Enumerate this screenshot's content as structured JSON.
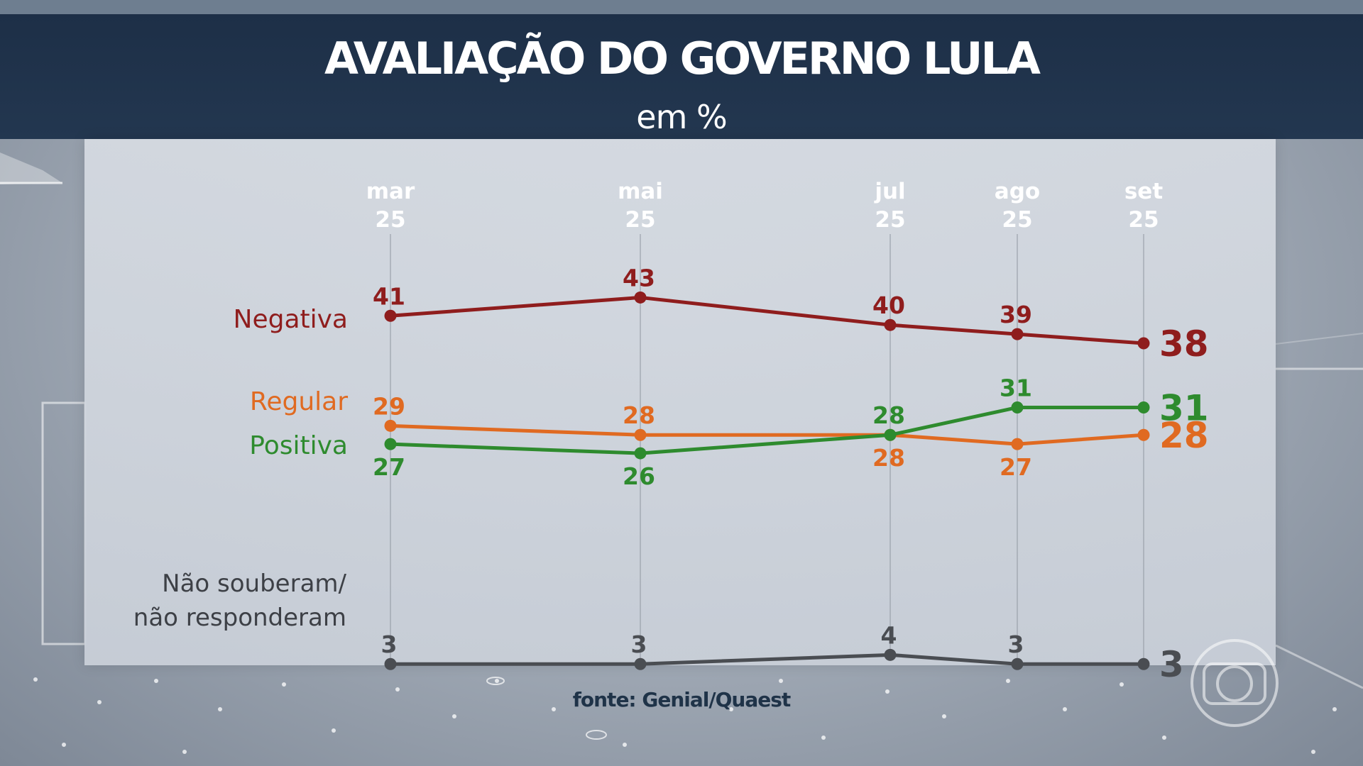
{
  "header": {
    "title": "AVALIAÇÃO DO GOVERNO LULA",
    "subtitle": "em %"
  },
  "source": "fonte: Genial/Quaest",
  "chart_data": {
    "type": "line",
    "title": "AVALIAÇÃO DO GOVERNO LULA",
    "subtitle": "em %",
    "xlabel": "",
    "ylabel": "",
    "ylim": [
      0,
      50
    ],
    "grid": "vertical lines at each date",
    "categories": [
      {
        "month": "mar",
        "year": "25"
      },
      {
        "month": "mai",
        "year": "25"
      },
      {
        "month": "jul",
        "year": "25"
      },
      {
        "month": "ago",
        "year": "25"
      },
      {
        "month": "set",
        "year": "25"
      }
    ],
    "series": [
      {
        "name": "Negativa",
        "color": "#8f1d1d",
        "values": [
          41,
          43,
          40,
          39,
          38
        ],
        "label_positions": [
          "above",
          "above",
          "above",
          "above",
          "right"
        ]
      },
      {
        "name": "Regular",
        "color": "#e06a21",
        "values": [
          29,
          28,
          28,
          27,
          28
        ],
        "label_positions": [
          "above",
          "above",
          "below",
          "below",
          "right"
        ]
      },
      {
        "name": "Positiva",
        "color": "#2e8b2e",
        "values": [
          27,
          26,
          28,
          31,
          31
        ],
        "label_positions": [
          "below",
          "below",
          "above",
          "above",
          "right"
        ]
      },
      {
        "name": "Não souberam/ não responderam",
        "name_lines": [
          "Não souberam/",
          "não responderam"
        ],
        "color": "#4a4d52",
        "values": [
          3,
          3,
          4,
          3,
          3
        ],
        "label_positions": [
          "above",
          "above",
          "above",
          "above",
          "right"
        ]
      }
    ]
  }
}
